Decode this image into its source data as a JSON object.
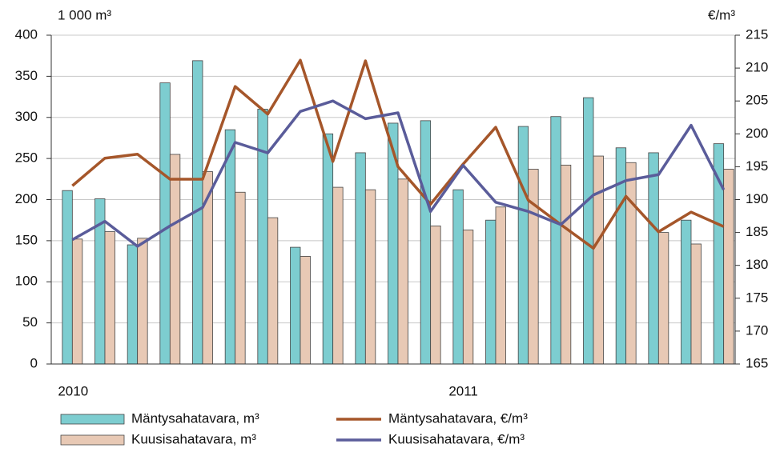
{
  "chart_data": {
    "type": "combo",
    "y_label": "1 000 m³",
    "y2_label": "€/m³",
    "categories": [
      "2010",
      null,
      null,
      null,
      null,
      null,
      null,
      null,
      null,
      null,
      null,
      null,
      "2011",
      null,
      null,
      null,
      null,
      null,
      null,
      null,
      null
    ],
    "ylim": [
      0,
      400
    ],
    "yticks": [
      0,
      50,
      100,
      150,
      200,
      250,
      300,
      350,
      400
    ],
    "y2lim": [
      165,
      215
    ],
    "y2ticks": [
      165,
      170,
      175,
      180,
      185,
      190,
      195,
      200,
      205,
      210,
      215
    ],
    "grid": true,
    "legend": "bottom",
    "series": [
      {
        "name": "Mäntysahatavara, m³",
        "type": "bar",
        "color": "#7dcdd0",
        "values": [
          211,
          201,
          145,
          342,
          369,
          285,
          310,
          142,
          280,
          257,
          293,
          296,
          212,
          175,
          289,
          301,
          324,
          263,
          257,
          175,
          268
        ]
      },
      {
        "name": "Kuusisahatavara, m³",
        "type": "bar",
        "color": "#e8c9b5",
        "values": [
          152,
          161,
          153,
          255,
          234,
          209,
          178,
          131,
          215,
          212,
          225,
          168,
          163,
          191,
          237,
          242,
          253,
          245,
          160,
          146,
          237
        ]
      },
      {
        "name": "Mäntysahatavara, €/m³",
        "type": "line",
        "axis": "y2",
        "color": "#a5562a",
        "values": [
          192.1,
          196.3,
          196.9,
          193.1,
          193.1,
          207.2,
          203.0,
          211.2,
          195.8,
          211.1,
          195.0,
          189.3,
          195.4,
          201.0,
          189.9,
          186.2,
          182.6,
          190.5,
          185.1,
          188.1,
          185.9
        ]
      },
      {
        "name": "Kuusisahatavara, €/m³",
        "type": "line",
        "axis": "y2",
        "color": "#5a5c9a",
        "values": [
          183.9,
          186.7,
          182.9,
          186.0,
          188.8,
          198.7,
          197.1,
          203.4,
          205.0,
          202.3,
          203.2,
          188.2,
          195.2,
          189.6,
          188.2,
          186.2,
          190.7,
          192.9,
          193.8,
          201.3,
          191.5
        ]
      }
    ]
  }
}
